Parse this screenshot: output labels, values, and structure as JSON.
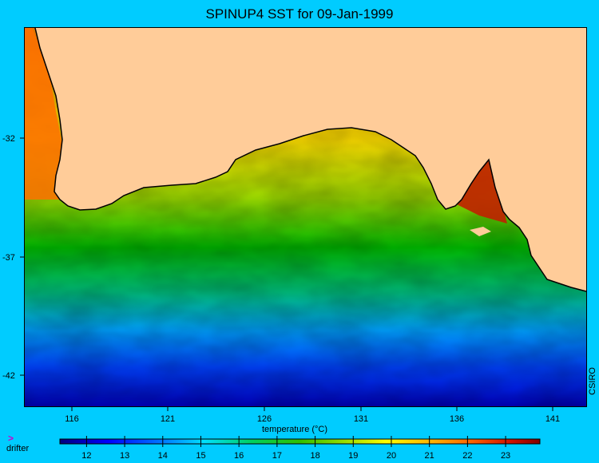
{
  "title": "SPINUP4 SST for 09-Jan-1999",
  "credit": "CSIRO",
  "colorbar": {
    "label": "temperature (°C)",
    "ticks": [
      "12",
      "13",
      "14",
      "15",
      "16",
      "17",
      "18",
      "19",
      "20",
      "21",
      "22",
      "23"
    ],
    "range": [
      11.3,
      23.9
    ],
    "colors": [
      "#00007f",
      "#0000ff",
      "#0080ff",
      "#00e0ff",
      "#00d060",
      "#30c000",
      "#a0e000",
      "#ffff00",
      "#ffb000",
      "#ff6000",
      "#d01000",
      "#800000"
    ]
  },
  "legend": {
    "drifter_symbol": ">",
    "drifter_label": "drifter"
  },
  "map": {
    "x_ticks": [
      "116",
      "121",
      "126",
      "131",
      "136",
      "141"
    ],
    "y_ticks": [
      "-32",
      "-37",
      "-42"
    ],
    "lon_range": [
      113.5,
      142.5
    ],
    "lat_range": [
      -44.5,
      -29
    ],
    "land_color": "#ffcc99",
    "ocean_color": "#00b000"
  }
}
